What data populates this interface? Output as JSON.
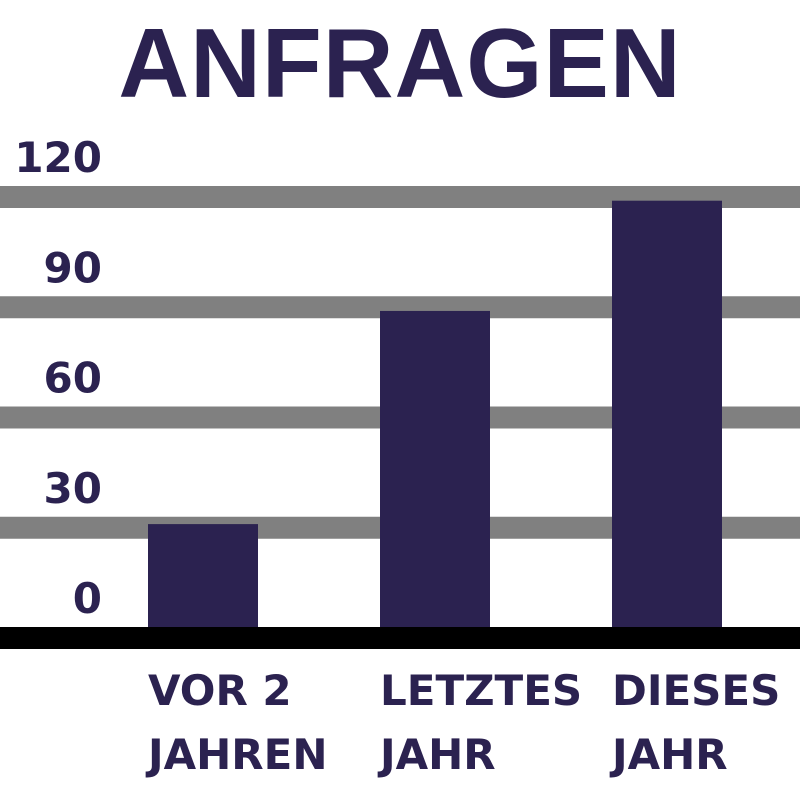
{
  "chart_data": {
    "type": "bar",
    "title": "ANFRAGEN",
    "categories": [
      [
        "VOR 2",
        "JAHREN"
      ],
      [
        "LETZTES",
        "JAHR"
      ],
      [
        "DIESES",
        "JAHR"
      ]
    ],
    "values": [
      28,
      86,
      116
    ],
    "yticks": [
      0,
      30,
      60,
      90,
      120
    ],
    "ylim": [
      0,
      120
    ],
    "grid": true,
    "bar_color": "#2b2250",
    "grid_color": "#808080",
    "baseline_color": "#000000",
    "text_color": "#2b2250"
  }
}
